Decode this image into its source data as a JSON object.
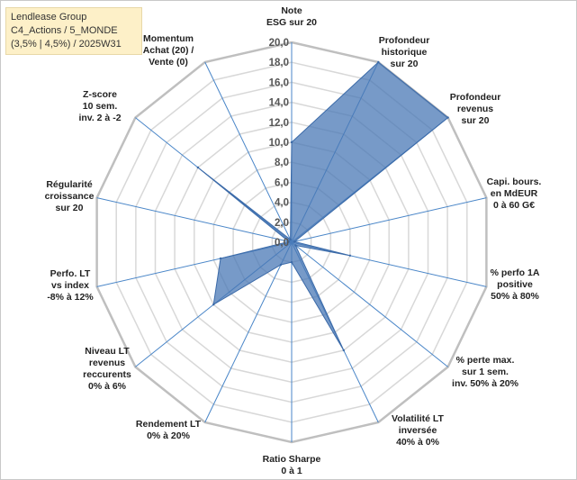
{
  "title": {
    "line1": "Lendlease Group",
    "line2": "C4_Actions / 5_MONDE",
    "line3": "(3,5% | 4,5%) / 2025W31"
  },
  "colors": {
    "fill": "#4a78b5",
    "fill_opacity": 0.75,
    "stroke": "#3b6aa8",
    "grid": "#d8d8d8",
    "spoke": "#4a86c8"
  },
  "chart_data": {
    "type": "radar",
    "rmax": 20,
    "tick_step": 2,
    "ticks": [
      "0,0",
      "2,0",
      "4,0",
      "6,0",
      "8,0",
      "10,0",
      "12,0",
      "14,0",
      "16,0",
      "18,0",
      "20,0"
    ],
    "axes": [
      {
        "lines": [
          "Note",
          "ESG sur 20"
        ],
        "value": 10
      },
      {
        "lines": [
          "Profondeur",
          "historique",
          "sur 20"
        ],
        "value": 20
      },
      {
        "lines": [
          "Profondeur",
          "revenus",
          "sur 20"
        ],
        "value": 20
      },
      {
        "lines": [
          "Capi. bours.",
          "en MdEUR",
          "0 à 60 G€"
        ],
        "value": 0.3
      },
      {
        "lines": [
          "% perfo 1A",
          "positive",
          "50% à 80%"
        ],
        "value": 6
      },
      {
        "lines": [
          "% perte max.",
          "sur 1 sem.",
          "inv. 50% à 20%"
        ],
        "value": 0.5
      },
      {
        "lines": [
          "Volatilité LT",
          "inversée",
          "40% à 0%"
        ],
        "value": 12
      },
      {
        "lines": [
          "Ratio Sharpe",
          "0 à 1"
        ],
        "value": 2
      },
      {
        "lines": [
          "Rendement LT",
          "0% à 20%"
        ],
        "value": 2.5
      },
      {
        "lines": [
          "Niveau LT",
          "revenus",
          "reccurents",
          "0% à 6%"
        ],
        "value": 10
      },
      {
        "lines": [
          "Perfo. LT",
          "vs index",
          "-8% à 12%"
        ],
        "value": 7.3
      },
      {
        "lines": [
          "Régularité",
          "croissance",
          "sur 20"
        ],
        "value": 0.3
      },
      {
        "lines": [
          "Z-score",
          "10 sem.",
          "inv. 2 à -2"
        ],
        "value": 12
      },
      {
        "lines": [
          "Momentum",
          "Achat (20) /",
          "Vente (0)"
        ],
        "value": 0.3
      }
    ]
  }
}
